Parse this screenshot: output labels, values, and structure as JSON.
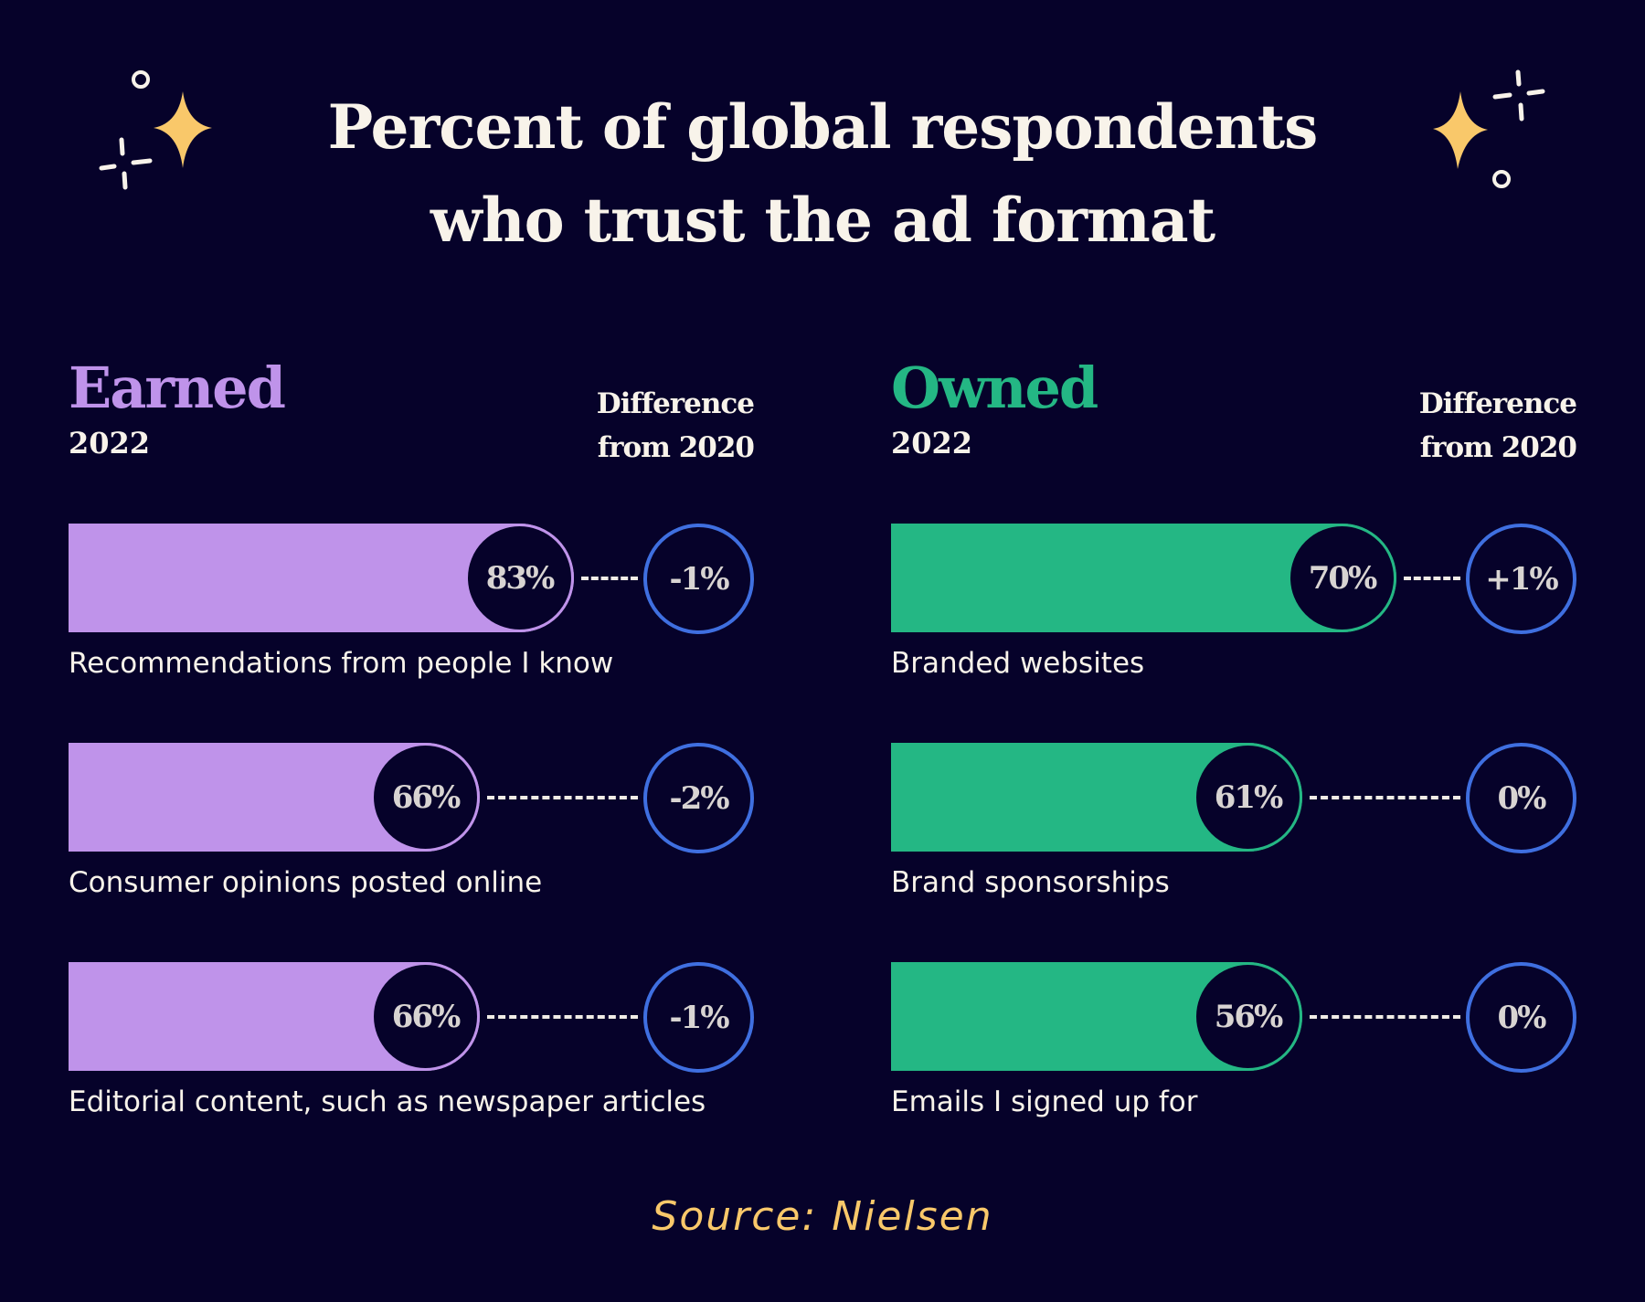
{
  "title": {
    "line1": "Percent of global respondents",
    "line2": "who trust the ad format"
  },
  "colors": {
    "background": "#06022a",
    "earned": "#bf93ea",
    "owned": "#24b784",
    "difference_ring": "#3f6fe0",
    "sparkle": "#f9c86a",
    "text": "#f8f3ea",
    "source": "#f9c86a"
  },
  "icons": [
    "sparkle-star-icon",
    "ring-icon",
    "twinkle-cross-icon"
  ],
  "chart_data": [
    {
      "type": "bar",
      "title": "Earned",
      "subtitle": "2022",
      "difference_header": [
        "Difference",
        "from 2020"
      ],
      "categories": [
        "Recommendations from people I know",
        "Consumer opinions posted online",
        "Editorial content, such as newspaper articles"
      ],
      "values": [
        83,
        66,
        66
      ],
      "value_labels": [
        "83%",
        "66%",
        "66%"
      ],
      "difference": [
        -1,
        -2,
        -1
      ],
      "difference_labels": [
        "-1%",
        "-2%",
        "-1%"
      ],
      "unit": "%"
    },
    {
      "type": "bar",
      "title": "Owned",
      "subtitle": "2022",
      "difference_header": [
        "Difference",
        "from 2020"
      ],
      "categories": [
        "Branded websites",
        "Brand sponsorships",
        "Emails I signed up for"
      ],
      "values": [
        70,
        61,
        56
      ],
      "value_labels": [
        "70%",
        "61%",
        "56%"
      ],
      "difference": [
        1,
        0,
        0
      ],
      "difference_labels": [
        "+1%",
        "0%",
        "0%"
      ],
      "unit": "%"
    }
  ],
  "source": "Source: Nielsen"
}
